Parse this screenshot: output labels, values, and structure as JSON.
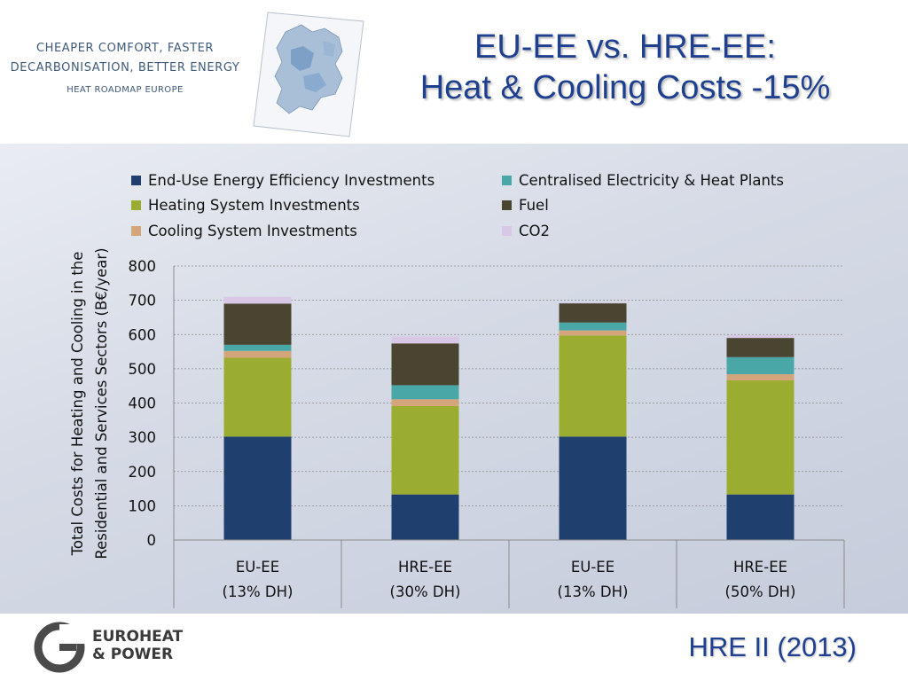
{
  "header": {
    "brand_line1": "CHEAPER COMFORT, FASTER",
    "brand_line2": "DECARBONISATION, BETTER ENERGY",
    "brand_line3": "HEAT ROADMAP EUROPE",
    "title_line1": "EU-EE vs. HRE-EE:",
    "title_line2": "Heat & Cooling Costs -15%"
  },
  "footer": {
    "logo_line1": "EUROHEAT",
    "logo_line2": "& POWER",
    "source": "HRE II (2013)"
  },
  "chart_data": {
    "type": "bar",
    "stacked": true,
    "ylabel_line1": "Total Costs for Heating and Cooling in the",
    "ylabel_line2": "Residential and Services Sectors (B€/year)",
    "ylim": [
      0,
      800
    ],
    "yticks": [
      0,
      100,
      200,
      300,
      400,
      500,
      600,
      700,
      800
    ],
    "grid": true,
    "legend_position": "top",
    "categories": [
      [
        "EU-EE",
        "(13% DH)"
      ],
      [
        "HRE-EE",
        "(30% DH)"
      ],
      [
        "EU-EE",
        "(13% DH)"
      ],
      [
        "HRE-EE",
        "(50% DH)"
      ]
    ],
    "series": [
      {
        "name": "End-Use Energy Efficiency Investments",
        "color": "#1f3f6e",
        "values": [
          302,
          133,
          302,
          133
        ]
      },
      {
        "name": "Heating System Investments",
        "color": "#9aad31",
        "values": [
          230,
          258,
          295,
          333
        ]
      },
      {
        "name": "Cooling System Investments",
        "color": "#d4a57a",
        "values": [
          20,
          20,
          15,
          18
        ]
      },
      {
        "name": "Centralised Electricity & Heat Plants",
        "color": "#4aa7a8",
        "values": [
          18,
          41,
          23,
          50
        ]
      },
      {
        "name": "Fuel",
        "color": "#4a4530",
        "values": [
          120,
          122,
          56,
          56
        ]
      },
      {
        "name": "CO2",
        "color": "#d9c7e6",
        "values": [
          20,
          20,
          2,
          8
        ]
      }
    ]
  }
}
